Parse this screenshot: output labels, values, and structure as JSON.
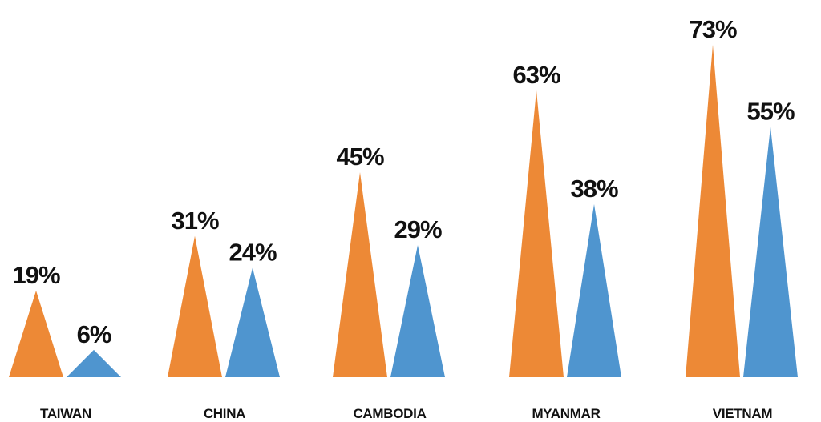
{
  "chart_data": {
    "type": "bar",
    "categories": [
      "TAIWAN",
      "CHINA",
      "CAMBODIA",
      "MYANMAR",
      "VIETNAM"
    ],
    "series": [
      {
        "values": [
          19,
          31,
          45,
          63,
          73
        ],
        "labels": [
          "19%",
          "31%",
          "45%",
          "63%",
          "73%"
        ],
        "color": "#ED8936"
      },
      {
        "values": [
          6,
          24,
          29,
          38,
          55
        ],
        "labels": [
          "6%",
          "24%",
          "29%",
          "38%",
          "55%"
        ],
        "color": "#4F95CF"
      }
    ],
    "title": "",
    "xlabel": "",
    "ylabel": "",
    "ylim": [
      0,
      73
    ],
    "mark_shape": "triangle",
    "grid": false,
    "legend": "none"
  }
}
